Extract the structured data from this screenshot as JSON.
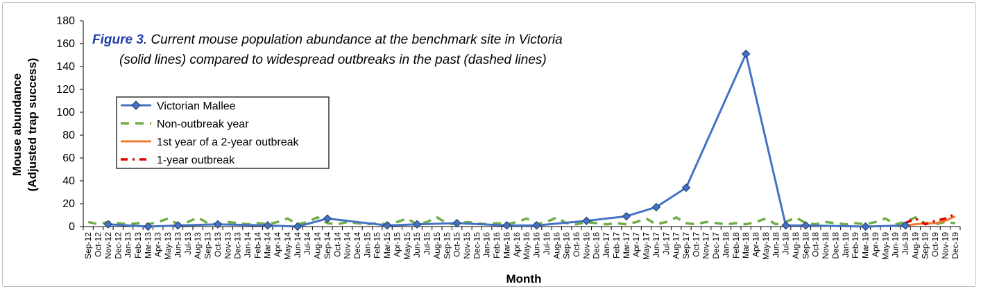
{
  "chart_data": {
    "type": "line",
    "title": {
      "figure_label": "Figure 3",
      "text_line1": ". Current mouse population abundance at the benchmark site in Victoria",
      "text_line2": "(solid lines) compared to widespread outbreaks in the past (dashed lines)"
    },
    "xlabel": "Month",
    "ylabel_line1": "Mouse abundance",
    "ylabel_line2": "(Adjusted trap success)",
    "ylim": [
      0,
      180
    ],
    "yticks": [
      0,
      20,
      40,
      60,
      80,
      100,
      120,
      140,
      160,
      180
    ],
    "grid": false,
    "legend_position": "left",
    "categories": [
      "Sep-12",
      "Oct-12",
      "Nov-12",
      "Dec-12",
      "Jan-13",
      "Feb-13",
      "Mar-13",
      "Apr-13",
      "May-13",
      "Jun-13",
      "Jul-13",
      "Aug-13",
      "Sep-13",
      "Oct-13",
      "Nov-13",
      "Dec-13",
      "Jan-14",
      "Feb-14",
      "Mar-14",
      "Apr-14",
      "May-14",
      "Jun-14",
      "Jul-14",
      "Aug-14",
      "Sep-14",
      "Oct-14",
      "Nov-14",
      "Dec-14",
      "Jan-15",
      "Feb-15",
      "Mar-15",
      "Apr-15",
      "May-15",
      "Jun-15",
      "Jul-15",
      "Aug-15",
      "Sep-15",
      "Oct-15",
      "Nov-15",
      "Dec-15",
      "Jan-16",
      "Feb-16",
      "Mar-16",
      "Apr-16",
      "May-16",
      "Jun-16",
      "Jul-16",
      "Aug-16",
      "Sep-16",
      "Oct-16",
      "Nov-16",
      "Dec-16",
      "Jan-17",
      "Feb-17",
      "Mar-17",
      "Apr-17",
      "May-17",
      "Jun-17",
      "Jul-17",
      "Aug-17",
      "Sep-17",
      "Oct-17",
      "Nov-17",
      "Dec-17",
      "Jan-18",
      "Feb-18",
      "Mar-18",
      "Apr-18",
      "May-18",
      "Jun-18",
      "Jul-18",
      "Aug-18",
      "Sep-18",
      "Oct-18",
      "Nov-18",
      "Dec-18",
      "Jan-19",
      "Feb-19",
      "Mar-19",
      "Apr-19",
      "May-19",
      "Jun-19",
      "Jul-19",
      "Aug-19",
      "Sep-19",
      "Oct-19",
      "Nov-19",
      "Dec-19"
    ],
    "series": [
      {
        "name": "Victorian Mallee",
        "style": "solid-with-diamond-markers",
        "color": "#4472c4",
        "points": [
          [
            "Nov-12",
            2
          ],
          [
            "Mar-13",
            0
          ],
          [
            "Jun-13",
            1
          ],
          [
            "Oct-13",
            2
          ],
          [
            "Mar-14",
            1
          ],
          [
            "Jun-14",
            0
          ],
          [
            "Sep-14",
            7
          ],
          [
            "Mar-15",
            1
          ],
          [
            "Jun-15",
            2
          ],
          [
            "Oct-15",
            3
          ],
          [
            "Mar-16",
            1
          ],
          [
            "Jun-16",
            1
          ],
          [
            "Nov-16",
            5
          ],
          [
            "Mar-17",
            9
          ],
          [
            "Jun-17",
            17
          ],
          [
            "Sep-17",
            34
          ],
          [
            "Mar-18",
            151
          ],
          [
            "Jul-18",
            1
          ],
          [
            "Sep-18",
            1
          ],
          [
            "Mar-19",
            0
          ],
          [
            "Jul-19",
            1
          ]
        ]
      },
      {
        "name": "Non-outbreak year",
        "style": "dashed",
        "color": "#70ad47",
        "points": [
          [
            "Sep-12",
            4
          ],
          [
            "Oct-12",
            2
          ],
          [
            "Nov-12",
            4
          ],
          [
            "Dec-12",
            3
          ],
          [
            "Jan-13",
            2
          ],
          [
            "Feb-13",
            3
          ],
          [
            "Mar-13",
            2
          ],
          [
            "Apr-13",
            4
          ],
          [
            "May-13",
            7
          ],
          [
            "Jun-13",
            2
          ],
          [
            "Jul-13",
            4
          ],
          [
            "Aug-13",
            8
          ],
          [
            "Sep-13",
            3
          ],
          [
            "Oct-13",
            2
          ],
          [
            "Nov-13",
            4
          ],
          [
            "Dec-13",
            3
          ],
          [
            "Jan-14",
            2
          ],
          [
            "Feb-14",
            3
          ],
          [
            "Mar-14",
            2
          ],
          [
            "Apr-14",
            4
          ],
          [
            "May-14",
            7
          ],
          [
            "Jun-14",
            2
          ],
          [
            "Jul-14",
            4
          ],
          [
            "Aug-14",
            8
          ],
          [
            "Sep-14",
            3
          ],
          [
            "Oct-14",
            2
          ],
          [
            "Nov-14",
            4
          ],
          [
            "Dec-14",
            3
          ],
          [
            "Jan-15",
            2
          ],
          [
            "Feb-15",
            3
          ],
          [
            "Mar-15",
            2
          ],
          [
            "Apr-15",
            4
          ],
          [
            "May-15",
            7
          ],
          [
            "Jun-15",
            2
          ],
          [
            "Jul-15",
            4
          ],
          [
            "Aug-15",
            8
          ],
          [
            "Sep-15",
            3
          ],
          [
            "Oct-15",
            2
          ],
          [
            "Nov-15",
            4
          ],
          [
            "Dec-15",
            3
          ],
          [
            "Jan-16",
            2
          ],
          [
            "Feb-16",
            3
          ],
          [
            "Mar-16",
            2
          ],
          [
            "Apr-16",
            4
          ],
          [
            "May-16",
            7
          ],
          [
            "Jun-16",
            2
          ],
          [
            "Jul-16",
            4
          ],
          [
            "Aug-16",
            8
          ],
          [
            "Sep-16",
            3
          ],
          [
            "Oct-16",
            2
          ],
          [
            "Nov-16",
            4
          ],
          [
            "Dec-16",
            3
          ],
          [
            "Jan-17",
            2
          ],
          [
            "Feb-17",
            3
          ],
          [
            "Mar-17",
            2
          ],
          [
            "Apr-17",
            4
          ],
          [
            "May-17",
            7
          ],
          [
            "Jun-17",
            2
          ],
          [
            "Jul-17",
            4
          ],
          [
            "Aug-17",
            8
          ],
          [
            "Sep-17",
            3
          ],
          [
            "Oct-17",
            2
          ],
          [
            "Nov-17",
            4
          ],
          [
            "Dec-17",
            3
          ],
          [
            "Jan-18",
            2
          ],
          [
            "Feb-18",
            3
          ],
          [
            "Mar-18",
            2
          ],
          [
            "Apr-18",
            4
          ],
          [
            "May-18",
            7
          ],
          [
            "Jun-18",
            2
          ],
          [
            "Jul-18",
            4
          ],
          [
            "Aug-18",
            8
          ],
          [
            "Sep-18",
            3
          ],
          [
            "Oct-18",
            2
          ],
          [
            "Nov-18",
            4
          ],
          [
            "Dec-18",
            3
          ],
          [
            "Jan-19",
            2
          ],
          [
            "Feb-19",
            3
          ],
          [
            "Mar-19",
            2
          ],
          [
            "Apr-19",
            4
          ],
          [
            "May-19",
            7
          ],
          [
            "Jun-19",
            2
          ],
          [
            "Jul-19",
            4
          ],
          [
            "Aug-19",
            8
          ],
          [
            "Sep-19",
            3
          ],
          [
            "Oct-19",
            2
          ],
          [
            "Nov-19",
            4
          ],
          [
            "Dec-19",
            3
          ]
        ]
      },
      {
        "name": "1st year of a 2-year outbreak",
        "style": "solid",
        "color": "#ed7d31",
        "points": [
          [
            "Jul-19",
            1
          ],
          [
            "Aug-19",
            2
          ],
          [
            "Sep-19",
            3
          ],
          [
            "Oct-19",
            3
          ],
          [
            "Nov-19",
            5
          ],
          [
            "Dec-19",
            9
          ]
        ]
      },
      {
        "name": "1-year outbreak",
        "style": "dash-dot",
        "color": "#e00000",
        "points": [
          [
            "Jul-19",
            3
          ],
          [
            "Aug-19",
            7
          ],
          [
            "Sep-19",
            2
          ],
          [
            "Oct-19",
            5
          ],
          [
            "Nov-19",
            7
          ],
          [
            "Dec-19",
            11
          ]
        ]
      }
    ]
  }
}
